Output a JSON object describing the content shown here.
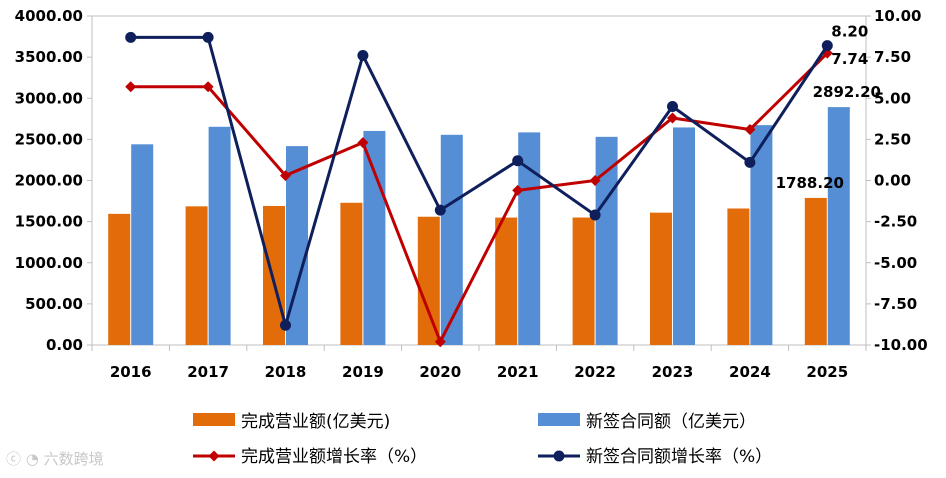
{
  "chart_data": {
    "type": "bar",
    "categories": [
      "2016",
      "2017",
      "2018",
      "2019",
      "2020",
      "2021",
      "2022",
      "2023",
      "2024",
      "2025"
    ],
    "left_axis": {
      "ylim": [
        0,
        4000
      ],
      "ticks": [
        "0.00",
        "500.00",
        "1000.00",
        "1500.00",
        "2000.00",
        "2500.00",
        "3000.00",
        "3500.00",
        "4000.00"
      ]
    },
    "right_axis": {
      "ylim": [
        -10,
        10
      ],
      "ticks": [
        "-10.00",
        "-7.50",
        "-5.00",
        "-2.50",
        "0.00",
        "2.50",
        "5.00",
        "7.50",
        "10.00"
      ]
    },
    "series": [
      {
        "name": "完成营业额(亿美元)",
        "type": "bar",
        "axis": "left",
        "color": "#E36C0A",
        "values": [
          1594.2,
          1685.9,
          1690.4,
          1729.0,
          1559.4,
          1549.4,
          1549.9,
          1609.1,
          1659.7,
          1788.2
        ]
      },
      {
        "name": "新签合同额（亿美元）",
        "type": "bar",
        "axis": "left",
        "color": "#558ED5",
        "values": [
          2440.1,
          2652.8,
          2418.0,
          2602.5,
          2555.4,
          2584.9,
          2530.7,
          2645.1,
          2673.0,
          2892.2
        ]
      },
      {
        "name": "完成营业额增长率（%）",
        "type": "line",
        "axis": "right",
        "color": "#C00000",
        "marker": "diamond",
        "values": [
          5.7,
          5.7,
          0.3,
          2.3,
          -9.8,
          -0.6,
          0.0,
          3.8,
          3.1,
          7.74
        ]
      },
      {
        "name": "新签合同额增长率（%）",
        "type": "line",
        "axis": "right",
        "color": "#0F1F5C",
        "marker": "circle",
        "values": [
          8.7,
          8.7,
          -8.8,
          7.6,
          -1.8,
          1.2,
          -2.1,
          4.5,
          1.1,
          8.2
        ]
      }
    ],
    "data_labels": [
      {
        "text": "8.20",
        "series": 3,
        "index": 9
      },
      {
        "text": "7.74",
        "series": 2,
        "index": 9
      },
      {
        "text": "2892.20",
        "series": 1,
        "index": 9
      },
      {
        "text": "1788.20",
        "series": 0,
        "index": 9
      }
    ],
    "legend_position": "bottom",
    "grid": false
  },
  "watermark": "六数跨境"
}
